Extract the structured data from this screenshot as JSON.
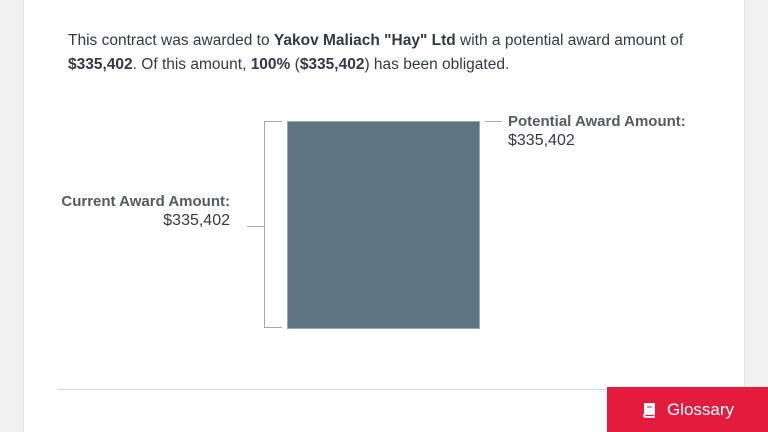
{
  "summary": {
    "prefix": "This contract was awarded to ",
    "recipient": "Yakov Maliach \"Hay\" Ltd",
    "middle": " with a potential award amount of ",
    "potential_amount": "$335,402",
    "middle2": ".  Of this amount, ",
    "percent": "100%",
    "open_paren": " (",
    "obligated_amount": "$335,402",
    "suffix": ") has been obligated."
  },
  "chart_data": {
    "type": "bar",
    "categories": [
      "Current Award Amount",
      "Potential Award Amount"
    ],
    "values": [
      335402,
      335402
    ]
  },
  "current_award": {
    "label": "Current Award Amount:",
    "value": "$335,402"
  },
  "potential_award": {
    "label": "Potential Award Amount:",
    "value": "$335,402"
  },
  "colors": {
    "bar_fill": "#5d7580",
    "glossary_button": "#e31c3d"
  },
  "glossary_button": {
    "label": "Glossary",
    "icon": "book-icon"
  }
}
